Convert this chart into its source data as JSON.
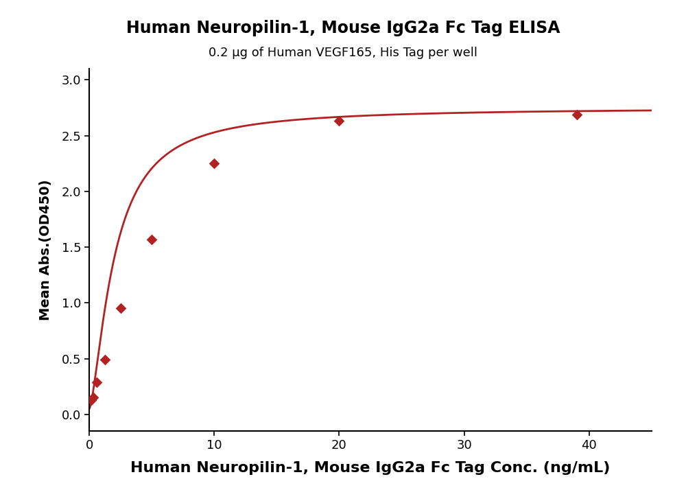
{
  "title": "Human Neuropilin-1, Mouse IgG2a Fc Tag ELISA",
  "subtitle": "0.2 μg of Human VEGF165, His Tag per well",
  "xlabel": "Human Neuropilin-1, Mouse IgG2a Fc Tag Conc. (ng/mL)",
  "ylabel": "Mean Abs.(OD450)",
  "x_data": [
    0.156,
    0.313,
    0.625,
    1.25,
    2.5,
    5.0,
    10.0,
    20.0,
    39.0
  ],
  "y_data": [
    0.13,
    0.155,
    0.29,
    0.49,
    0.95,
    1.57,
    2.25,
    2.63,
    2.69
  ],
  "xlim": [
    0,
    45
  ],
  "ylim": [
    -0.15,
    3.1
  ],
  "yticks": [
    0.0,
    0.5,
    1.0,
    1.5,
    2.0,
    2.5,
    3.0
  ],
  "xticks": [
    0,
    10,
    20,
    30,
    40
  ],
  "color": "#B22222",
  "marker": "D",
  "marker_size": 8,
  "line_width": 2.0,
  "title_fontsize": 17,
  "subtitle_fontsize": 13,
  "xlabel_fontsize": 16,
  "ylabel_fontsize": 14,
  "tick_fontsize": 13,
  "background_color": "#ffffff"
}
